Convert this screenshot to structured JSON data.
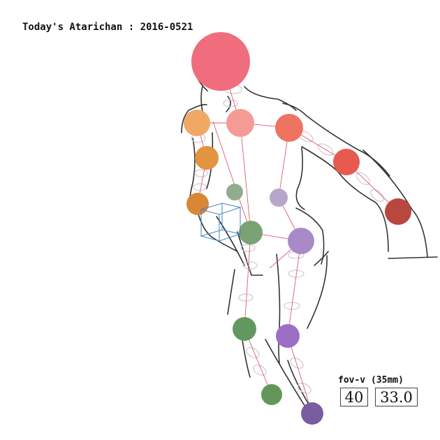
{
  "title": "Today's Atarichan : 2016-0521",
  "fov": {
    "label": "fov-v (35mm)",
    "vertical_value": "40",
    "mm_value": "33.0"
  },
  "colors": {
    "head": "#f06d7e",
    "neck": "#f49b96",
    "shoulder_r": "#ef7361",
    "elbow_r": "#e65a50",
    "wrist_r": "#b8483e",
    "shoulder_l": "#f2a865",
    "elbow_l": "#e29440",
    "wrist_l": "#d98735",
    "chest_l": "#94ac8e",
    "chest_r": "#b7a6cc",
    "hip_l": "#7aa274",
    "hip_r": "#a88ac9",
    "knee_l": "#629860",
    "knee_r": "#9b6fc5",
    "ankle_l": "#639759",
    "ankle_r": "#7a5da0",
    "bone_line": "#e05b6c",
    "outline": "#333333",
    "ring": "#c9c9c9",
    "cube": "#3f84c6"
  }
}
